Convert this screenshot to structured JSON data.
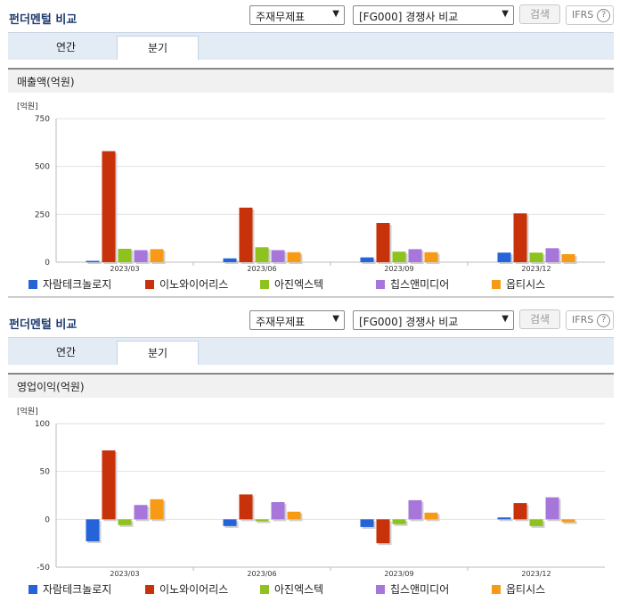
{
  "colors": {
    "s1": "#2563d9",
    "s2": "#c8320a",
    "s3": "#8dc21f",
    "s4": "#a776db",
    "s5": "#f79a15"
  },
  "panels": [
    {
      "title": "펀더멘털 비교",
      "select1": "주재무제표",
      "select2": "[FG000] 경쟁사 비교",
      "search_label": "검색",
      "ifrs_label": "IFRS",
      "tabs": [
        "연간",
        "분기"
      ],
      "active_tab": 1,
      "chart_title": "매출액(억원)",
      "unit": "[억원]",
      "chart_data": {
        "type": "bar",
        "title": "매출액(억원)",
        "ylabel": "[억원]",
        "categories": [
          "2023/03",
          "2023/06",
          "2023/09",
          "2023/12"
        ],
        "ylim": [
          0,
          750
        ],
        "yticks": [
          0,
          250,
          500,
          750
        ],
        "series": [
          {
            "name": "자람테크놀로지",
            "values": [
              7,
              20,
              25,
              50
            ]
          },
          {
            "name": "이노와이어리스",
            "values": [
              580,
              285,
              205,
              255
            ]
          },
          {
            "name": "아진엑스텍",
            "values": [
              70,
              78,
              55,
              50
            ]
          },
          {
            "name": "칩스앤미디어",
            "values": [
              63,
              63,
              68,
              73
            ]
          },
          {
            "name": "옵티시스",
            "values": [
              68,
              52,
              52,
              42
            ]
          }
        ]
      }
    },
    {
      "title": "펀더멘털 비교",
      "select1": "주재무제표",
      "select2": "[FG000] 경쟁사 비교",
      "search_label": "검색",
      "ifrs_label": "IFRS",
      "tabs": [
        "연간",
        "분기"
      ],
      "active_tab": 1,
      "chart_title": "영업이익(억원)",
      "unit": "[억원]",
      "chart_data": {
        "type": "bar",
        "title": "영업이익(억원)",
        "ylabel": "[억원]",
        "categories": [
          "2023/03",
          "2023/06",
          "2023/09",
          "2023/12"
        ],
        "ylim": [
          -50,
          100
        ],
        "yticks": [
          -50,
          0,
          50,
          100
        ],
        "series": [
          {
            "name": "자람테크놀로지",
            "values": [
              -23,
              -7,
              -8,
              2
            ]
          },
          {
            "name": "이노와이어리스",
            "values": [
              72,
              26,
              -25,
              17
            ]
          },
          {
            "name": "아진엑스텍",
            "values": [
              -6,
              -2,
              -5,
              -7
            ]
          },
          {
            "name": "칩스앤미디어",
            "values": [
              15,
              18,
              20,
              23
            ]
          },
          {
            "name": "옵티시스",
            "values": [
              21,
              8,
              7,
              -3
            ]
          }
        ]
      }
    }
  ]
}
